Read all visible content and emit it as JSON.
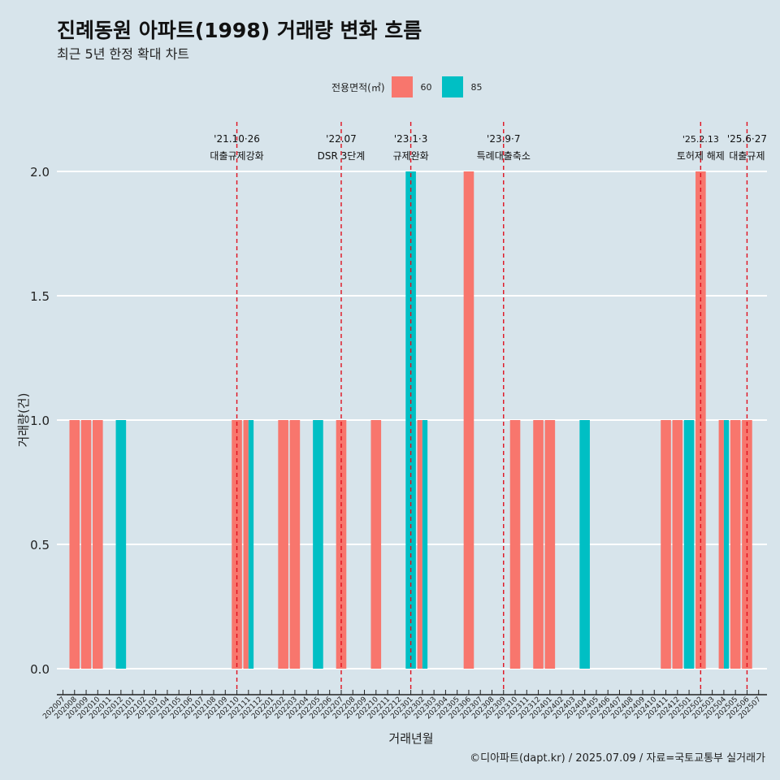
{
  "title": "진례동원 아파트(1998) 거래량 변화 흐름",
  "subtitle": "최근 5년 한정 확대 차트",
  "footer": "©디아파트(dapt.kr) / 2025.07.09 / 자료=국토교통부 실거래가",
  "colors": {
    "area60": "#f8766d",
    "area85": "#00bfc4",
    "background": "#d7e4eb",
    "event_line": "#e0101e",
    "grid": "#ffffff"
  },
  "chart_data": {
    "type": "bar",
    "title": "진례동원 아파트(1998) 거래량 변화 흐름",
    "xlabel": "거래년월",
    "ylabel": "거래량(건)",
    "ylim": [
      0,
      2.15
    ],
    "yticks": [
      "0.0",
      "0.5",
      "1.0",
      "1.5",
      "2.0"
    ],
    "ytick_values": [
      0,
      0.5,
      1.0,
      1.5,
      2.0
    ],
    "legend": {
      "title": "전용면적(㎡)",
      "position": "top",
      "entries": [
        "60",
        "85"
      ]
    },
    "categories": [
      "202007",
      "202008",
      "202009",
      "202010",
      "202011",
      "202012",
      "202101",
      "202102",
      "202103",
      "202104",
      "202105",
      "202106",
      "202107",
      "202108",
      "202109",
      "202110",
      "202111",
      "202112",
      "202201",
      "202202",
      "202203",
      "202204",
      "202205",
      "202206",
      "202207",
      "202208",
      "202209",
      "202210",
      "202211",
      "202212",
      "202301",
      "202302",
      "202303",
      "202304",
      "202305",
      "202306",
      "202307",
      "202308",
      "202309",
      "202310",
      "202311",
      "202312",
      "202401",
      "202402",
      "202403",
      "202404",
      "202405",
      "202406",
      "202407",
      "202408",
      "202409",
      "202410",
      "202411",
      "202412",
      "202501",
      "202502",
      "202503",
      "202504",
      "202505",
      "202506",
      "202507"
    ],
    "xtick_labels": [
      "202007",
      "202008",
      "202009",
      "202010",
      "202011",
      "202012",
      "202101",
      "202102",
      "202103",
      "202104",
      "202105",
      "202106",
      "202107",
      "202108",
      "202109",
      "202110",
      "202111",
      "202112",
      "202201",
      "202202",
      "202203",
      "202204",
      "202205",
      "202206",
      "202207",
      "202208",
      "202209",
      "202210",
      "202211",
      "202212",
      "202301",
      "202302",
      "202303",
      "202304",
      "202305",
      "202306",
      "202307",
      "202308",
      "202309",
      "202310",
      "202311",
      "202312",
      "202401",
      "202402",
      "202403",
      "202404",
      "202405",
      "202406",
      "202407",
      "202408",
      "202409",
      "202410",
      "202411",
      "202412",
      "202501",
      "202502",
      "202503",
      "202504",
      "202505",
      "202506",
      "202507"
    ],
    "bars": [
      {
        "month": "202008",
        "area": "60",
        "value": 1
      },
      {
        "month": "202009",
        "area": "60",
        "value": 1
      },
      {
        "month": "202010",
        "area": "60",
        "value": 1
      },
      {
        "month": "202012",
        "area": "85",
        "value": 1
      },
      {
        "month": "202110",
        "area": "60",
        "value": 1
      },
      {
        "month": "202111",
        "area": "60",
        "value": 1
      },
      {
        "month": "202111",
        "area": "85",
        "value": 1
      },
      {
        "month": "202202",
        "area": "60",
        "value": 1
      },
      {
        "month": "202203",
        "area": "60",
        "value": 1
      },
      {
        "month": "202205",
        "area": "85",
        "value": 1
      },
      {
        "month": "202207",
        "area": "60",
        "value": 1
      },
      {
        "month": "202210",
        "area": "60",
        "value": 1
      },
      {
        "month": "202301",
        "area": "85",
        "value": 2
      },
      {
        "month": "202302",
        "area": "60",
        "value": 1
      },
      {
        "month": "202302",
        "area": "85",
        "value": 1
      },
      {
        "month": "202306",
        "area": "60",
        "value": 2
      },
      {
        "month": "202310",
        "area": "60",
        "value": 1
      },
      {
        "month": "202312",
        "area": "60",
        "value": 1
      },
      {
        "month": "202401",
        "area": "60",
        "value": 1
      },
      {
        "month": "202404",
        "area": "85",
        "value": 1
      },
      {
        "month": "202411",
        "area": "60",
        "value": 1
      },
      {
        "month": "202412",
        "area": "60",
        "value": 1
      },
      {
        "month": "202501",
        "area": "85",
        "value": 1
      },
      {
        "month": "202502",
        "area": "60",
        "value": 2
      },
      {
        "month": "202504",
        "area": "60",
        "value": 1
      },
      {
        "month": "202504",
        "area": "85",
        "value": 1
      },
      {
        "month": "202505",
        "area": "60",
        "value": 1
      },
      {
        "month": "202506",
        "area": "60",
        "value": 1
      }
    ],
    "events": [
      {
        "month_pos": 15.0,
        "date": "'21.10·26",
        "label": "대출규제강화"
      },
      {
        "month_pos": 24.0,
        "date": "'22.07",
        "label": "DSR 3단계"
      },
      {
        "month_pos": 30.0,
        "date": "'23.1·3",
        "label": "규제완화"
      },
      {
        "month_pos": 38.0,
        "date": "'23.9·7",
        "label": "특례대출축소"
      },
      {
        "month_pos": 55.0,
        "date": "'25.2.13",
        "label": "토허제 해제"
      },
      {
        "month_pos": 59.0,
        "date": "'25.6·27",
        "label": "대출규제"
      }
    ]
  }
}
